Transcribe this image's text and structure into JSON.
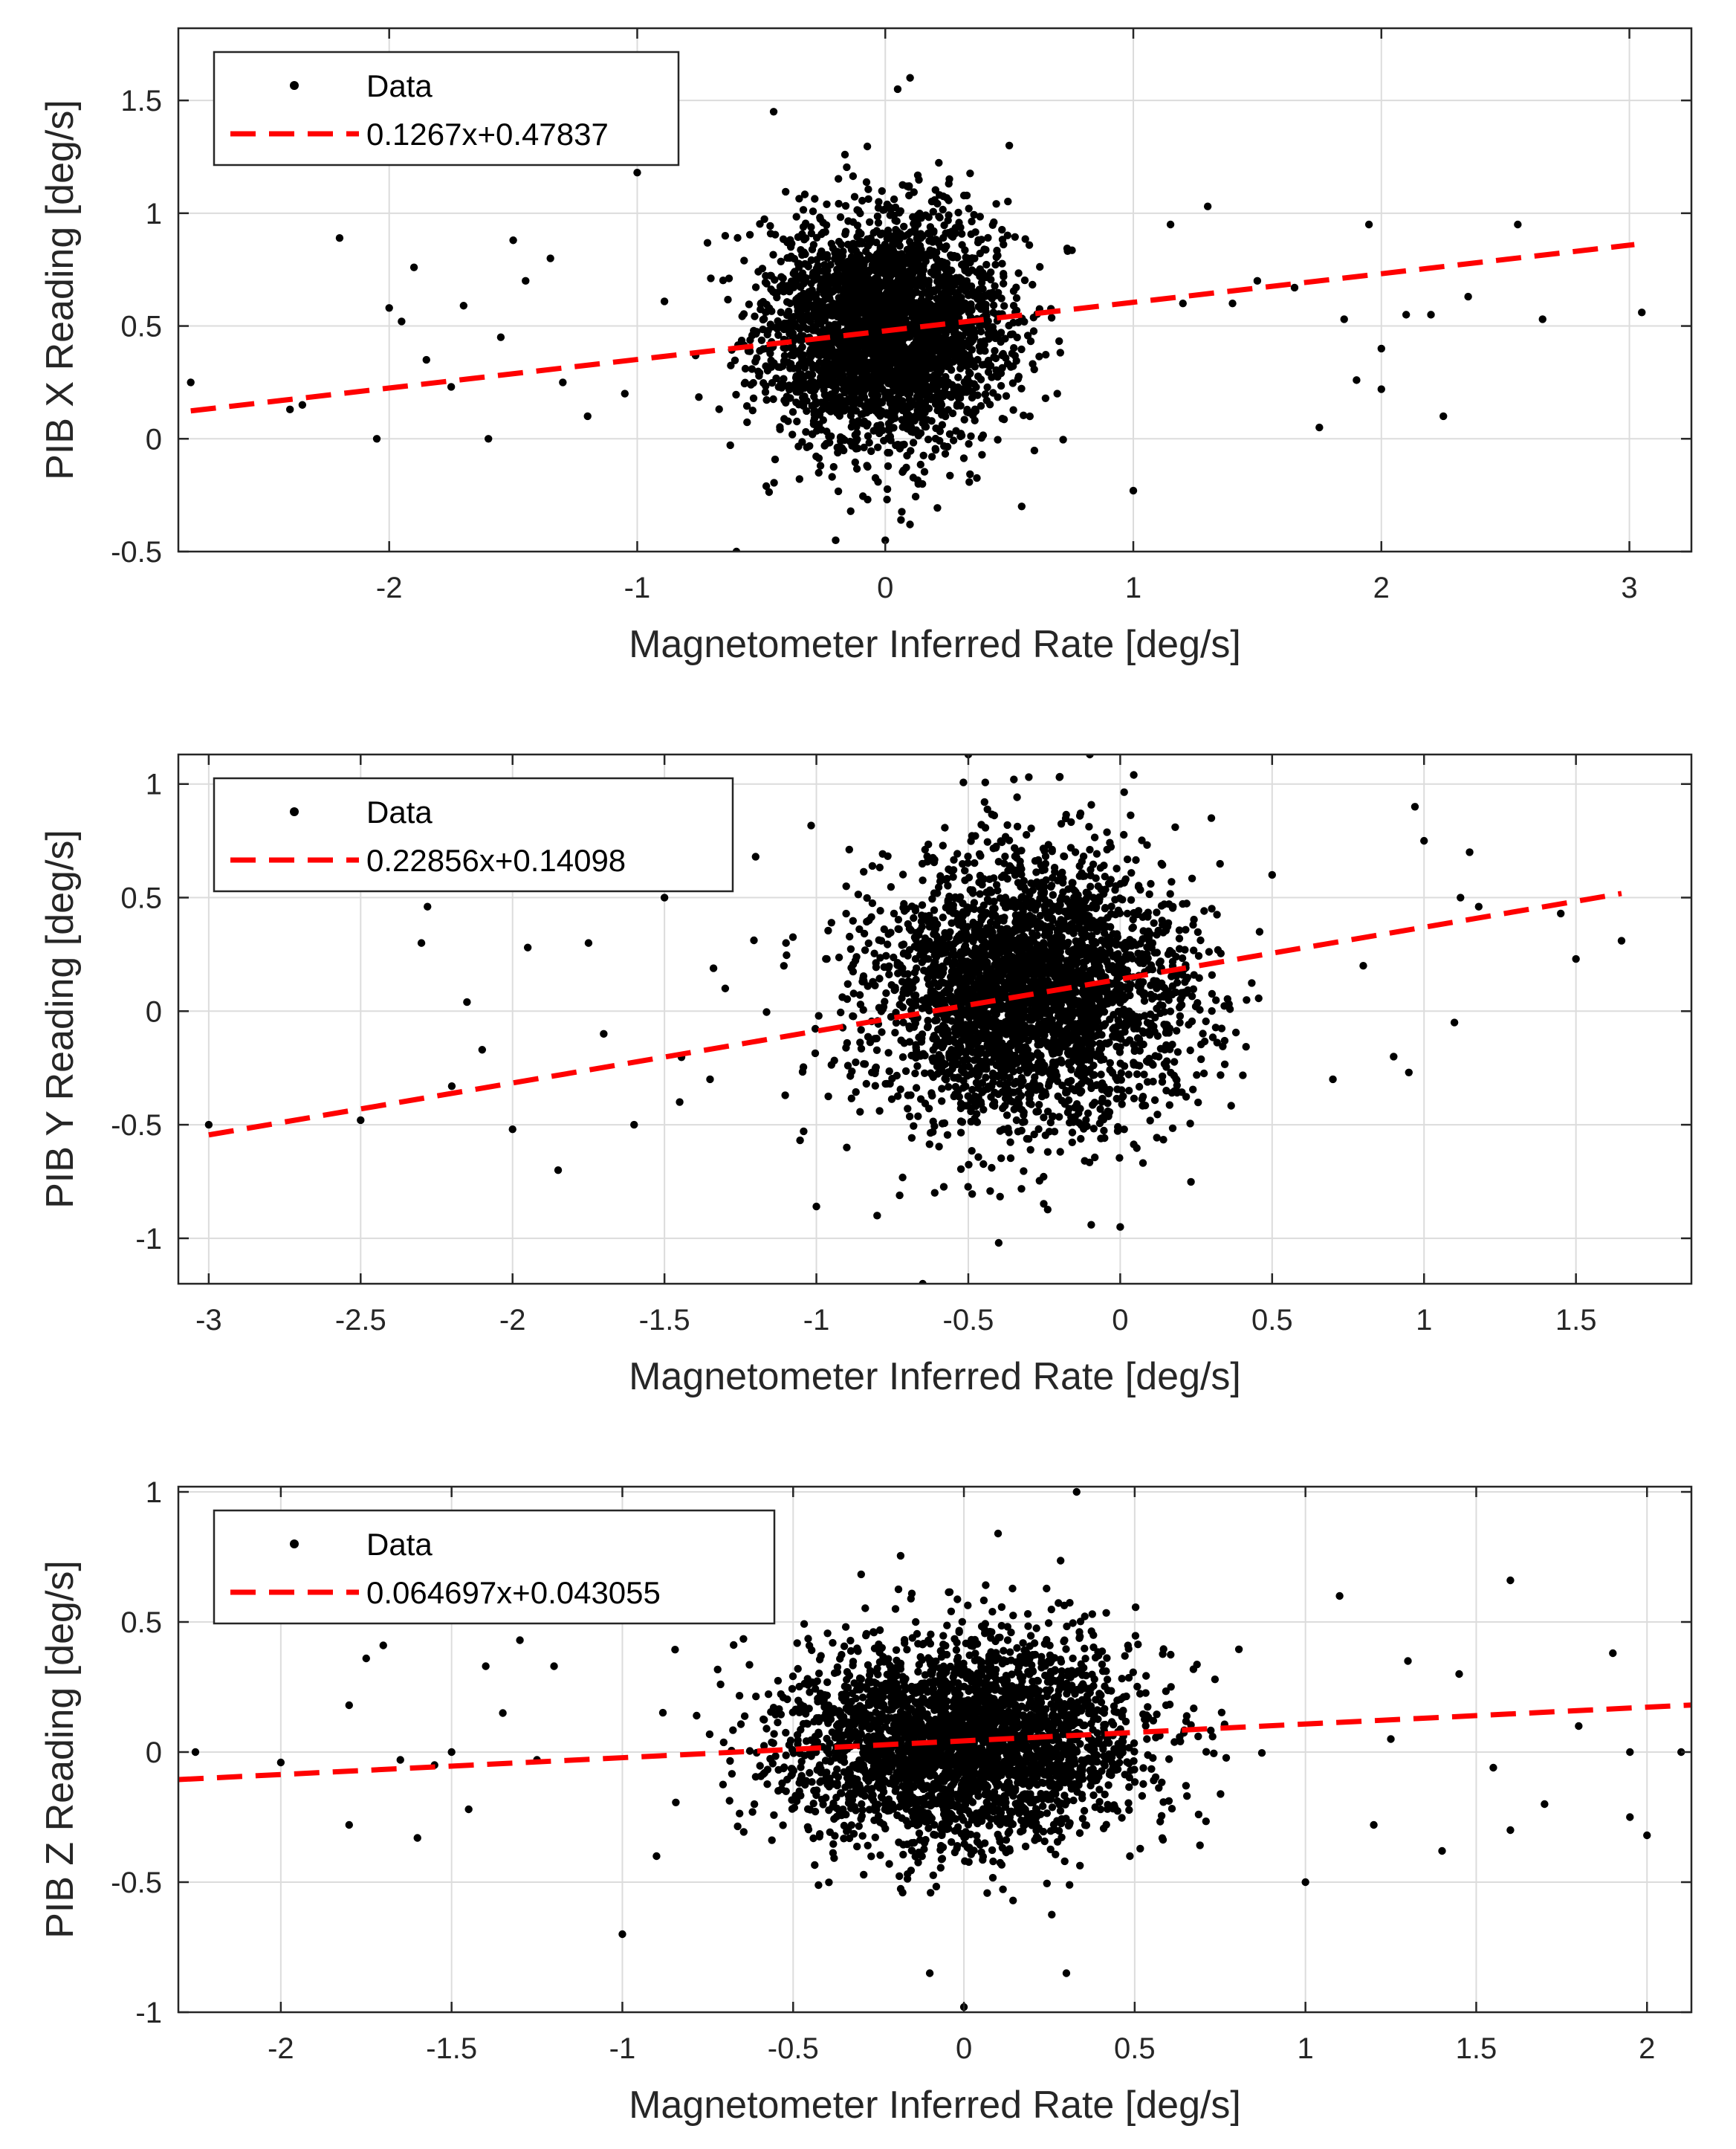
{
  "colors": {
    "data": "#000000",
    "fit": "#ff0000",
    "grid": "#dcdcdc",
    "axis": "#262626",
    "background": "#ffffff"
  },
  "chart_data": [
    {
      "type": "scatter",
      "xlabel": "Magnetometer Inferred Rate [deg/s]",
      "ylabel": "PIB X Reading [deg/s]",
      "xlim": [
        -2.85,
        3.25
      ],
      "ylim": [
        -0.5,
        1.82
      ],
      "xticks": [
        -2,
        -1,
        0,
        1,
        2,
        3
      ],
      "yticks": [
        -0.5,
        0,
        0.5,
        1,
        1.5
      ],
      "xtick_labels": [
        "-2",
        "-1",
        "0",
        "1",
        "2",
        "3"
      ],
      "ytick_labels": [
        "-0.5",
        "0",
        "0.5",
        "1",
        "1.5"
      ],
      "grid": true,
      "legend": {
        "position": "top-left",
        "data_label": "Data",
        "fit_label": "0.1267x+0.47837"
      },
      "fit": {
        "slope": 0.1267,
        "intercept": 0.47837,
        "x_range": [
          -2.8,
          3.02
        ]
      },
      "cluster": {
        "x_mean": 0.0,
        "x_sd": 0.24,
        "y_mean": 0.48,
        "y_sd": 0.25,
        "count": 3200
      },
      "outliers": [
        [
          -2.8,
          0.25
        ],
        [
          -2.4,
          0.13
        ],
        [
          -2.2,
          0.89
        ],
        [
          -2.05,
          0.0
        ],
        [
          -2.0,
          0.58
        ],
        [
          -1.9,
          0.76
        ],
        [
          -1.85,
          0.35
        ],
        [
          -1.7,
          0.59
        ],
        [
          -1.6,
          0.0
        ],
        [
          -1.5,
          0.88
        ],
        [
          -1.45,
          0.7
        ],
        [
          -1.35,
          0.8
        ],
        [
          -1.3,
          0.25
        ],
        [
          -1.2,
          0.1
        ],
        [
          -1.05,
          0.2
        ],
        [
          -1.0,
          1.18
        ],
        [
          -0.45,
          1.45
        ],
        [
          0.05,
          1.55
        ],
        [
          0.1,
          1.6
        ],
        [
          0.5,
          1.3
        ],
        [
          0.55,
          -0.3
        ],
        [
          -0.6,
          -0.5
        ],
        [
          0.0,
          -0.45
        ],
        [
          -0.2,
          -0.45
        ],
        [
          1.0,
          -0.23
        ],
        [
          1.15,
          0.95
        ],
        [
          1.3,
          1.03
        ],
        [
          1.5,
          0.7
        ],
        [
          1.75,
          0.05
        ],
        [
          1.85,
          0.53
        ],
        [
          1.9,
          0.26
        ],
        [
          1.95,
          0.95
        ],
        [
          2.0,
          0.4
        ],
        [
          2.0,
          0.22
        ],
        [
          2.1,
          0.55
        ],
        [
          2.2,
          0.55
        ],
        [
          2.25,
          0.1
        ],
        [
          2.35,
          0.63
        ],
        [
          2.55,
          0.95
        ],
        [
          2.65,
          0.53
        ],
        [
          3.05,
          0.56
        ],
        [
          1.4,
          0.6
        ],
        [
          -2.35,
          0.15
        ],
        [
          -1.75,
          0.23
        ],
        [
          -1.95,
          0.52
        ],
        [
          -1.55,
          0.45
        ],
        [
          1.65,
          0.67
        ],
        [
          1.2,
          0.6
        ]
      ]
    },
    {
      "type": "scatter",
      "xlabel": "Magnetometer Inferred Rate [deg/s]",
      "ylabel": "PIB Y Reading [deg/s]",
      "xlim": [
        -3.1,
        1.88
      ],
      "ylim": [
        -1.2,
        1.13
      ],
      "xticks": [
        -3,
        -2.5,
        -2,
        -1.5,
        -1,
        -0.5,
        0,
        0.5,
        1,
        1.5
      ],
      "yticks": [
        -1,
        -0.5,
        0,
        0.5,
        1
      ],
      "xtick_labels": [
        "-3",
        "-2.5",
        "-2",
        "-1.5",
        "-1",
        "-0.5",
        "0",
        "0.5",
        "1",
        "1.5"
      ],
      "ytick_labels": [
        "-1",
        "-0.5",
        "0",
        "0.5",
        "1"
      ],
      "grid": true,
      "legend": {
        "position": "top-left",
        "data_label": "Data",
        "fit_label": "0.22856x+0.14098"
      },
      "fit": {
        "slope": 0.22856,
        "intercept": 0.14098,
        "x_range": [
          -3.0,
          1.65
        ]
      },
      "cluster": {
        "x_mean": -0.3,
        "x_sd": 0.26,
        "y_mean": 0.07,
        "y_sd": 0.3,
        "count": 3200
      },
      "outliers": [
        [
          -3.0,
          -0.5
        ],
        [
          -2.5,
          -0.48
        ],
        [
          -2.28,
          0.46
        ],
        [
          -2.2,
          -0.33
        ],
        [
          -2.15,
          0.04
        ],
        [
          -2.1,
          -0.17
        ],
        [
          -2.0,
          -0.52
        ],
        [
          -1.95,
          0.28
        ],
        [
          -1.85,
          -0.7
        ],
        [
          -1.75,
          0.3
        ],
        [
          -1.6,
          -0.5
        ],
        [
          -1.5,
          0.5
        ],
        [
          -1.35,
          -0.3
        ],
        [
          -1.2,
          0.68
        ],
        [
          -1.1,
          0.3
        ],
        [
          -1.0,
          -0.86
        ],
        [
          -0.8,
          -0.9
        ],
        [
          -0.65,
          -1.2
        ],
        [
          -0.4,
          -1.02
        ],
        [
          -0.5,
          1.13
        ],
        [
          -0.35,
          1.02
        ],
        [
          -0.2,
          1.03
        ],
        [
          -0.1,
          1.13
        ],
        [
          0.0,
          -0.95
        ],
        [
          0.5,
          0.6
        ],
        [
          0.9,
          -0.2
        ],
        [
          0.95,
          -0.27
        ],
        [
          0.97,
          0.9
        ],
        [
          1.0,
          0.75
        ],
        [
          1.1,
          -0.05
        ],
        [
          1.12,
          0.5
        ],
        [
          1.15,
          0.7
        ],
        [
          1.18,
          0.46
        ],
        [
          1.45,
          0.43
        ],
        [
          1.5,
          0.23
        ],
        [
          1.65,
          0.31
        ],
        [
          -1.45,
          -0.4
        ],
        [
          -2.3,
          0.3
        ],
        [
          -1.7,
          -0.1
        ],
        [
          0.8,
          0.2
        ],
        [
          0.7,
          -0.3
        ],
        [
          -1.3,
          0.1
        ],
        [
          -0.9,
          -0.6
        ],
        [
          0.3,
          0.85
        ]
      ]
    },
    {
      "type": "scatter",
      "xlabel": "Magnetometer Inferred Rate [deg/s]",
      "ylabel": "PIB Z Reading [deg/s]",
      "xlim": [
        -2.3,
        2.13
      ],
      "ylim": [
        -1.0,
        1.02
      ],
      "xticks": [
        -2,
        -1.5,
        -1,
        -0.5,
        0,
        0.5,
        1,
        1.5,
        2
      ],
      "yticks": [
        -1,
        -0.5,
        0,
        0.5,
        1
      ],
      "xtick_labels": [
        "-2",
        "-1.5",
        "-1",
        "-0.5",
        "0",
        "0.5",
        "1",
        "1.5",
        "2"
      ],
      "ytick_labels": [
        "-1",
        "-0.5",
        "0",
        "0.5",
        "1"
      ],
      "grid": true,
      "legend": {
        "position": "top-left",
        "data_label": "Data",
        "fit_label": "0.064697x+0.043055"
      },
      "fit": {
        "slope": 0.064697,
        "intercept": 0.043055,
        "x_range": [
          -2.3,
          2.13
        ]
      },
      "cluster": {
        "x_mean": 0.0,
        "x_sd": 0.26,
        "y_mean": 0.04,
        "y_sd": 0.2,
        "count": 3200
      },
      "outliers": [
        [
          -2.25,
          0.0
        ],
        [
          -2.0,
          -0.04
        ],
        [
          -1.8,
          -0.28
        ],
        [
          -1.75,
          0.36
        ],
        [
          -1.7,
          0.41
        ],
        [
          -1.65,
          -0.03
        ],
        [
          -1.6,
          -0.33
        ],
        [
          -1.5,
          0.0
        ],
        [
          -1.45,
          -0.22
        ],
        [
          -1.4,
          0.33
        ],
        [
          -1.3,
          0.43
        ],
        [
          -1.25,
          -0.03
        ],
        [
          -1.2,
          0.33
        ],
        [
          -1.0,
          -0.7
        ],
        [
          -0.9,
          -0.4
        ],
        [
          0.33,
          1.0
        ],
        [
          0.1,
          0.84
        ],
        [
          0.0,
          -0.98
        ],
        [
          -0.1,
          -0.85
        ],
        [
          0.3,
          -0.85
        ],
        [
          1.1,
          0.6
        ],
        [
          1.6,
          0.66
        ],
        [
          1.55,
          -0.06
        ],
        [
          1.7,
          -0.2
        ],
        [
          1.9,
          0.38
        ],
        [
          1.95,
          0.0
        ],
        [
          1.95,
          -0.25
        ],
        [
          2.0,
          -0.32
        ],
        [
          2.1,
          0.0
        ],
        [
          1.4,
          -0.38
        ],
        [
          1.3,
          0.35
        ],
        [
          1.2,
          -0.28
        ],
        [
          1.0,
          -0.5
        ],
        [
          1.45,
          0.3
        ],
        [
          1.8,
          0.1
        ],
        [
          -1.8,
          0.18
        ],
        [
          -1.55,
          -0.05
        ],
        [
          -1.35,
          0.15
        ],
        [
          1.25,
          0.05
        ],
        [
          1.6,
          -0.3
        ]
      ]
    }
  ]
}
